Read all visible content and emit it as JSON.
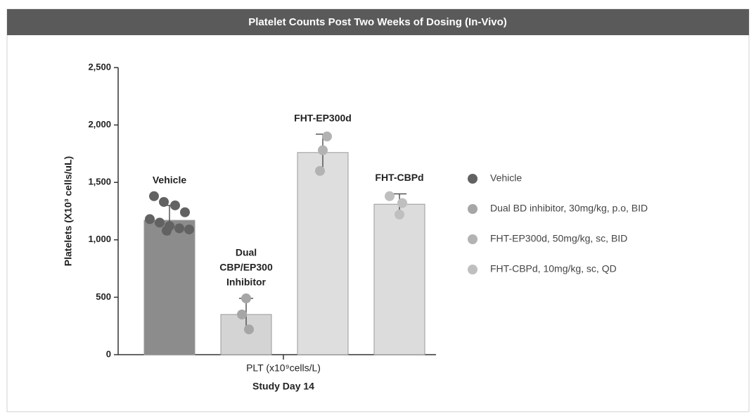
{
  "chart_data": {
    "type": "bar_dots",
    "title": "Platelet Counts Post Two Weeks of Dosing (In-Vivo)",
    "y_label": "Platelets (X10³ cells/uL)",
    "x_label": "PLT (x10⁹cells/L)",
    "x_sublabel": "Study Day 14",
    "ylim": [
      0,
      2500
    ],
    "yticks": [
      0,
      500,
      {
        "value": 1000,
        "label": "1,000"
      },
      {
        "value": 1500,
        "label": "1,500"
      },
      {
        "value": 2000,
        "label": "2,000"
      },
      {
        "value": 2500,
        "label": "2,500"
      }
    ],
    "legend": "right",
    "annotations": [
      [
        "Vehicle"
      ],
      [
        "Dual",
        "CBP/EP300",
        "Inhibitor"
      ],
      [
        "FHT-EP300d"
      ],
      [
        "FHT-CBPd"
      ]
    ],
    "series": [
      {
        "name": "Vehicle",
        "color": "#626262",
        "bar_color": "#8c8c8c",
        "values": [
          1170
        ],
        "errors": [
          130
        ],
        "points": [
          1380,
          1330,
          1300,
          1240,
          1180,
          1150,
          1120,
          1100,
          1090,
          1080
        ]
      },
      {
        "name": "Dual BD inhibitor, 30mg/kg, p.o, BID",
        "color": "#a6a6a6",
        "bar_color": "#d4d4d4",
        "values": [
          350
        ],
        "errors": [
          140
        ],
        "points": [
          490,
          350,
          220
        ]
      },
      {
        "name": "FHT-EP300d, 50mg/kg, sc, BID",
        "color": "#b3b3b3",
        "bar_color": "#dedede",
        "values": [
          1760
        ],
        "errors": [
          160
        ],
        "points": [
          1900,
          1780,
          1600
        ]
      },
      {
        "name": "FHT-CBPd, 10mg/kg, sc, QD",
        "color": "#bfbfbf",
        "bar_color": "#dcdcdc",
        "values": [
          1310
        ],
        "errors": [
          90
        ],
        "points": [
          1380,
          1320,
          1220
        ]
      }
    ]
  }
}
